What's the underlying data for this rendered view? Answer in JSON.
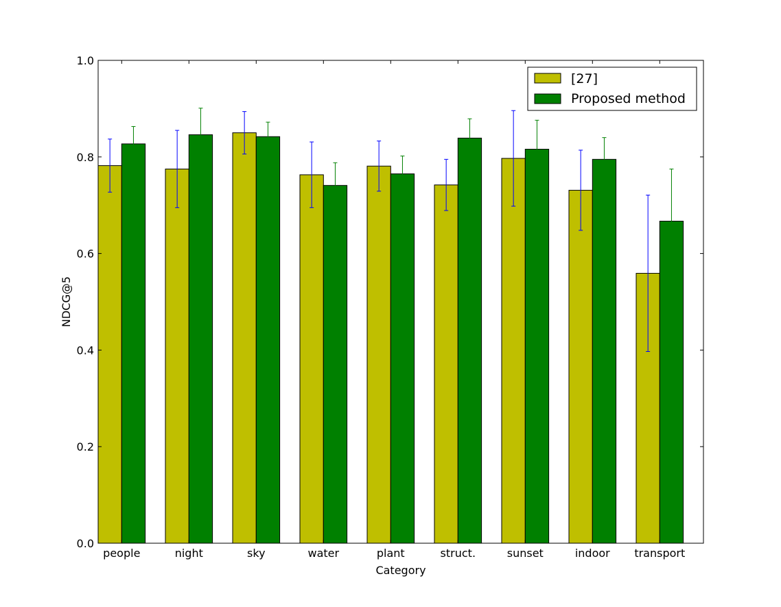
{
  "chart_data": {
    "type": "bar",
    "title": "",
    "xlabel": "Category",
    "ylabel": "NDCG@5",
    "ylim": [
      0.0,
      1.0
    ],
    "yticks": [
      "0.0",
      "0.2",
      "0.4",
      "0.6",
      "0.8",
      "1.0"
    ],
    "grid": false,
    "legend_position": "top-right",
    "categories": [
      "people",
      "night",
      "sky",
      "water",
      "plant",
      "struct.",
      "sunset",
      "indoor",
      "transport"
    ],
    "series": [
      {
        "name": "[27]",
        "color": "#bfbf00",
        "error_color": "#0000ff",
        "values": [
          0.782,
          0.775,
          0.85,
          0.763,
          0.781,
          0.742,
          0.797,
          0.731,
          0.559
        ],
        "errors": [
          0.055,
          0.08,
          0.044,
          0.068,
          0.052,
          0.053,
          0.099,
          0.083,
          0.162
        ]
      },
      {
        "name": "Proposed method",
        "color": "#008000",
        "error_color": "#008000",
        "values": [
          0.827,
          0.846,
          0.842,
          0.741,
          0.765,
          0.839,
          0.816,
          0.795,
          0.667
        ],
        "errors": [
          0.036,
          0.055,
          0.03,
          0.047,
          0.037,
          0.04,
          0.06,
          0.045,
          0.108
        ]
      }
    ]
  }
}
